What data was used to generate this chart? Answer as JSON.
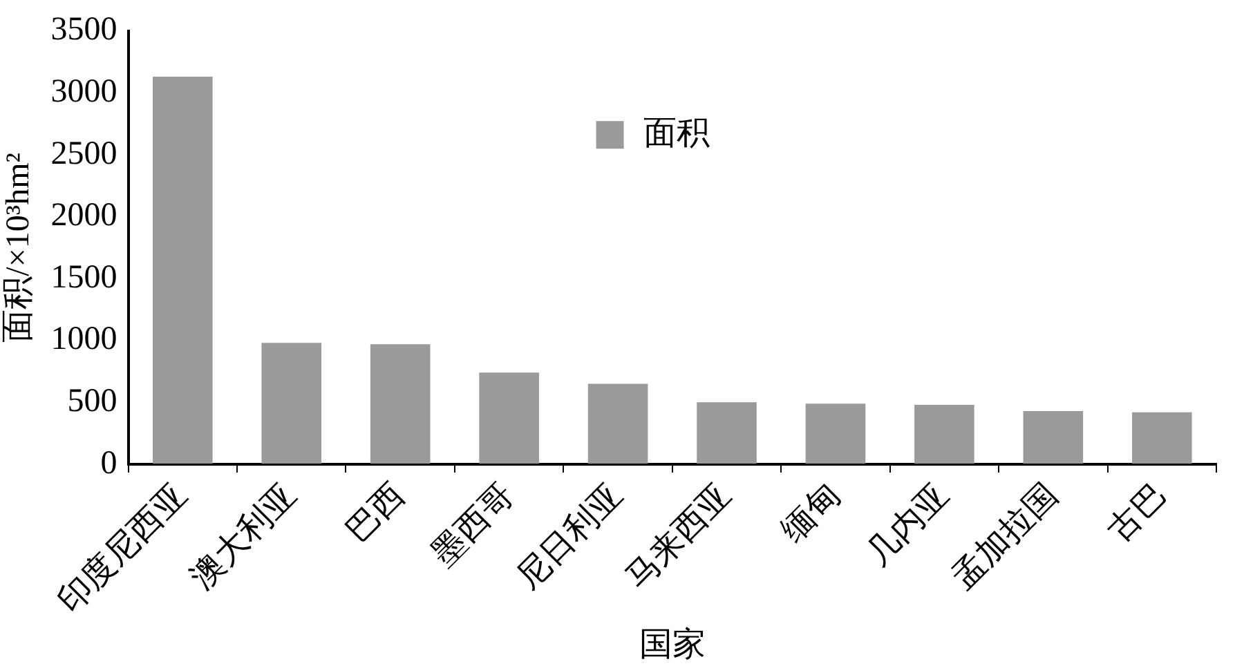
{
  "chart_data": {
    "type": "bar",
    "xlabel": "国家",
    "ylabel": "面积/×10³hm²",
    "categories": [
      "印度尼西亚",
      "澳大利亚",
      "巴西",
      "墨西哥",
      "尼日利亚",
      "马来西亚",
      "缅甸",
      "几内亚",
      "孟加拉国",
      "古巴"
    ],
    "series": [
      {
        "name": "面积",
        "color": "#9a9a9a",
        "values": [
          3130,
          980,
          970,
          740,
          650,
          500,
          490,
          480,
          430,
          420
        ]
      }
    ],
    "ylim": [
      0,
      3500
    ],
    "yticks": [
      0,
      500,
      1000,
      1500,
      2000,
      2500,
      3000,
      3500
    ],
    "grid": false,
    "legend": "top"
  }
}
